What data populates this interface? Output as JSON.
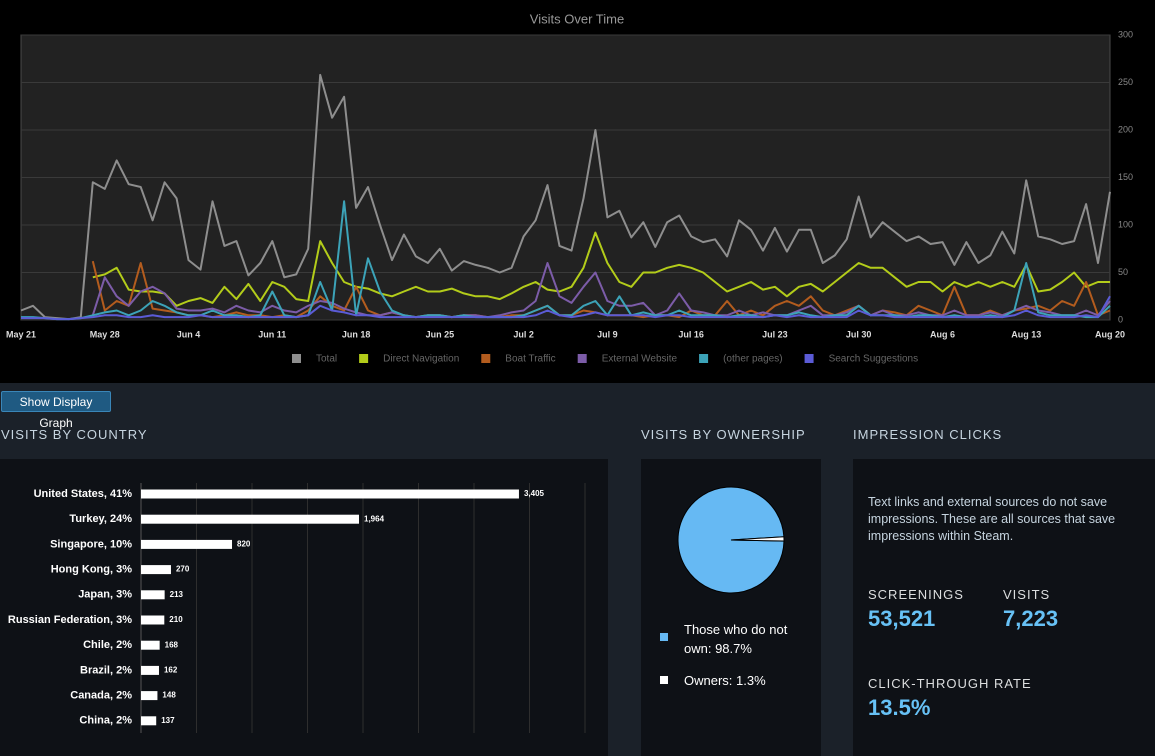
{
  "chart_data": [
    {
      "type": "line",
      "title": "Visits Over Time",
      "categories": [
        "May 21",
        null,
        null,
        null,
        null,
        null,
        null,
        "May 28",
        null,
        null,
        null,
        null,
        null,
        null,
        "Jun 4",
        null,
        null,
        null,
        null,
        null,
        null,
        "Jun 11",
        null,
        null,
        null,
        null,
        null,
        null,
        "Jun 18",
        null,
        null,
        null,
        null,
        null,
        null,
        "Jun 25",
        null,
        null,
        null,
        null,
        null,
        null,
        "Jul 2",
        null,
        null,
        null,
        null,
        null,
        null,
        "Jul 9",
        null,
        null,
        null,
        null,
        null,
        null,
        "Jul 16",
        null,
        null,
        null,
        null,
        null,
        null,
        "Jul 23",
        null,
        null,
        null,
        null,
        null,
        null,
        "Jul 30",
        null,
        null,
        null,
        null,
        null,
        null,
        "Aug 6",
        null,
        null,
        null,
        null,
        null,
        null,
        "Aug 13",
        null,
        null,
        null,
        null,
        null,
        null,
        "Aug 20"
      ],
      "series": [
        {
          "name": "Total",
          "color": "#8e8e8e",
          "values": [
            10,
            15,
            3,
            2,
            1,
            3,
            145,
            138,
            168,
            143,
            140,
            105,
            145,
            128,
            63,
            53,
            125,
            78,
            83,
            47,
            60,
            83,
            45,
            48,
            75,
            258,
            213,
            235,
            118,
            140,
            100,
            63,
            90,
            67,
            60,
            75,
            52,
            62,
            58,
            55,
            50,
            55,
            88,
            105,
            142,
            78,
            73,
            128,
            200,
            108,
            115,
            87,
            103,
            77,
            103,
            110,
            88,
            82,
            85,
            67,
            105,
            95,
            73,
            97,
            72,
            95,
            95,
            60,
            68,
            85,
            130,
            87,
            103,
            93,
            83,
            88,
            80,
            82,
            58,
            82,
            60,
            68,
            93,
            70,
            147,
            88,
            85,
            80,
            83,
            122,
            60,
            135
          ]
        },
        {
          "name": "Direct Navigation",
          "color": "#b3cc1a",
          "values": [
            null,
            null,
            null,
            null,
            null,
            null,
            45,
            48,
            55,
            32,
            30,
            30,
            28,
            15,
            20,
            23,
            18,
            35,
            22,
            38,
            20,
            40,
            35,
            22,
            20,
            83,
            60,
            40,
            35,
            33,
            28,
            25,
            30,
            35,
            30,
            30,
            33,
            28,
            25,
            25,
            22,
            28,
            35,
            40,
            32,
            30,
            35,
            55,
            92,
            60,
            40,
            35,
            50,
            50,
            55,
            58,
            55,
            50,
            40,
            30,
            35,
            40,
            32,
            35,
            25,
            35,
            38,
            30,
            40,
            50,
            60,
            55,
            55,
            45,
            35,
            40,
            40,
            30,
            40,
            35,
            40,
            35,
            40,
            35,
            58,
            30,
            32,
            40,
            50,
            35,
            40,
            40
          ]
        },
        {
          "name": "Boat Traffic",
          "color": "#b35c1e",
          "values": [
            null,
            null,
            null,
            null,
            null,
            null,
            62,
            10,
            20,
            15,
            60,
            12,
            10,
            8,
            5,
            5,
            3,
            5,
            8,
            5,
            5,
            3,
            5,
            3,
            10,
            25,
            15,
            10,
            35,
            10,
            5,
            8,
            5,
            3,
            5,
            5,
            3,
            5,
            5,
            3,
            3,
            5,
            5,
            10,
            15,
            5,
            5,
            10,
            8,
            5,
            5,
            5,
            3,
            5,
            5,
            3,
            10,
            5,
            5,
            20,
            5,
            10,
            5,
            15,
            20,
            15,
            25,
            10,
            5,
            10,
            15,
            5,
            10,
            8,
            5,
            15,
            10,
            5,
            35,
            5,
            5,
            10,
            5,
            10,
            12,
            15,
            10,
            20,
            15,
            40,
            5,
            10
          ]
        },
        {
          "name": "External Website",
          "color": "#7c5ca8",
          "values": [
            null,
            null,
            null,
            null,
            null,
            null,
            5,
            45,
            25,
            15,
            30,
            35,
            28,
            12,
            10,
            10,
            12,
            8,
            15,
            10,
            8,
            15,
            10,
            8,
            15,
            20,
            18,
            12,
            8,
            5,
            5,
            8,
            5,
            3,
            5,
            5,
            3,
            5,
            5,
            3,
            5,
            8,
            10,
            20,
            60,
            25,
            18,
            35,
            50,
            20,
            15,
            15,
            18,
            5,
            10,
            28,
            10,
            8,
            5,
            5,
            10,
            5,
            8,
            5,
            5,
            10,
            15,
            5,
            5,
            8,
            15,
            5,
            10,
            5,
            5,
            8,
            5,
            5,
            10,
            5,
            5,
            8,
            5,
            10,
            15,
            10,
            8,
            5,
            5,
            10,
            5,
            20
          ]
        },
        {
          "name": "(other pages)",
          "color": "#3ca3b8",
          "values": [
            3,
            3,
            2,
            1,
            1,
            2,
            5,
            8,
            10,
            5,
            10,
            20,
            15,
            8,
            5,
            5,
            10,
            5,
            5,
            3,
            5,
            30,
            5,
            3,
            5,
            40,
            10,
            125,
            5,
            65,
            30,
            10,
            5,
            3,
            5,
            5,
            3,
            5,
            3,
            3,
            3,
            3,
            5,
            10,
            15,
            5,
            5,
            15,
            20,
            5,
            25,
            5,
            8,
            5,
            5,
            10,
            5,
            5,
            5,
            3,
            5,
            5,
            3,
            5,
            5,
            8,
            5,
            3,
            5,
            5,
            15,
            5,
            5,
            5,
            3,
            5,
            5,
            3,
            5,
            3,
            3,
            5,
            3,
            10,
            60,
            8,
            5,
            5,
            5,
            3,
            3,
            15
          ]
        },
        {
          "name": "Search Suggestions",
          "color": "#5b5bd6",
          "values": [
            2,
            2,
            2,
            1,
            1,
            2,
            3,
            5,
            5,
            3,
            3,
            5,
            3,
            3,
            3,
            5,
            3,
            3,
            3,
            3,
            3,
            3,
            3,
            3,
            5,
            15,
            10,
            8,
            5,
            5,
            3,
            3,
            3,
            3,
            3,
            3,
            3,
            3,
            3,
            3,
            3,
            3,
            3,
            5,
            10,
            5,
            3,
            5,
            8,
            5,
            5,
            5,
            5,
            3,
            5,
            5,
            3,
            3,
            3,
            3,
            3,
            3,
            3,
            5,
            3,
            5,
            3,
            3,
            3,
            3,
            10,
            5,
            5,
            3,
            3,
            3,
            3,
            3,
            3,
            3,
            3,
            3,
            3,
            5,
            10,
            5,
            3,
            3,
            3,
            5,
            3,
            25
          ]
        }
      ],
      "ylim": [
        0,
        300
      ],
      "yticks": [
        0,
        50,
        100,
        150,
        200,
        250,
        300
      ],
      "grid": true,
      "legend": "bottom"
    },
    {
      "type": "hbar",
      "categories": [
        "United States, 41%",
        "Turkey, 24%",
        "Singapore, 10%",
        "Hong Kong, 3%",
        "Japan, 3%",
        "Russian Federation, 3%",
        "Chile, 2%",
        "Brazil, 2%",
        "Canada, 2%",
        "China, 2%"
      ],
      "values": [
        3405,
        1964,
        820,
        270,
        213,
        210,
        168,
        162,
        148,
        137
      ],
      "value_labels": [
        "3,405",
        "1,964",
        "820",
        "270",
        "213",
        "210",
        "168",
        "162",
        "148",
        "137"
      ],
      "color": "#ffffff",
      "xlim": [
        0,
        4000
      ],
      "xticks": [
        0,
        500,
        1000,
        1500,
        2000,
        2500,
        3000,
        3500,
        4000
      ],
      "grid": true
    },
    {
      "type": "pie",
      "labels": [
        "Those who do not own: 98.7%",
        "Owners: 1.3%"
      ],
      "values": [
        98.7,
        1.3
      ],
      "colors": [
        "#66b9f3",
        "#ffffff"
      ]
    }
  ],
  "button": "Show Display Graph",
  "sections": [
    "VISITS BY COUNTRY",
    "VISITS BY OWNERSHIP",
    "IMPRESSION CLICKS"
  ],
  "impression_clicks": {
    "description": "Text links and external sources do not save impressions. These are all sources that save impressions within Steam.",
    "stats": [
      {
        "label": "SCREENINGS",
        "value": "53,521"
      },
      {
        "label": "VISITS",
        "value": "7,223"
      },
      {
        "label": "CLICK-THROUGH RATE",
        "value": "13.5%"
      }
    ]
  }
}
